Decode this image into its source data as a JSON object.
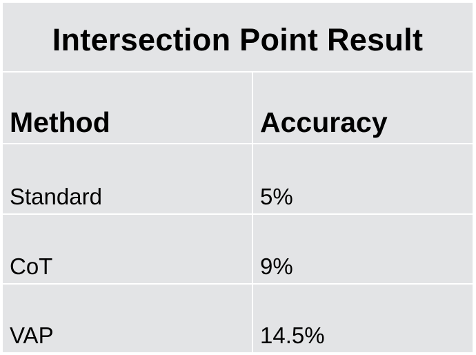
{
  "chart_data": {
    "type": "table",
    "title": "Intersection Point Result",
    "columns": [
      "Method",
      "Accuracy"
    ],
    "rows": [
      {
        "method": "Standard",
        "accuracy": "5%"
      },
      {
        "method": "CoT",
        "accuracy": "9%"
      },
      {
        "method": "VAP",
        "accuracy": "14.5%"
      }
    ]
  },
  "colors": {
    "cell_background": "#e3e4e6",
    "grid_lines": "#ffffff",
    "text": "#000000"
  }
}
